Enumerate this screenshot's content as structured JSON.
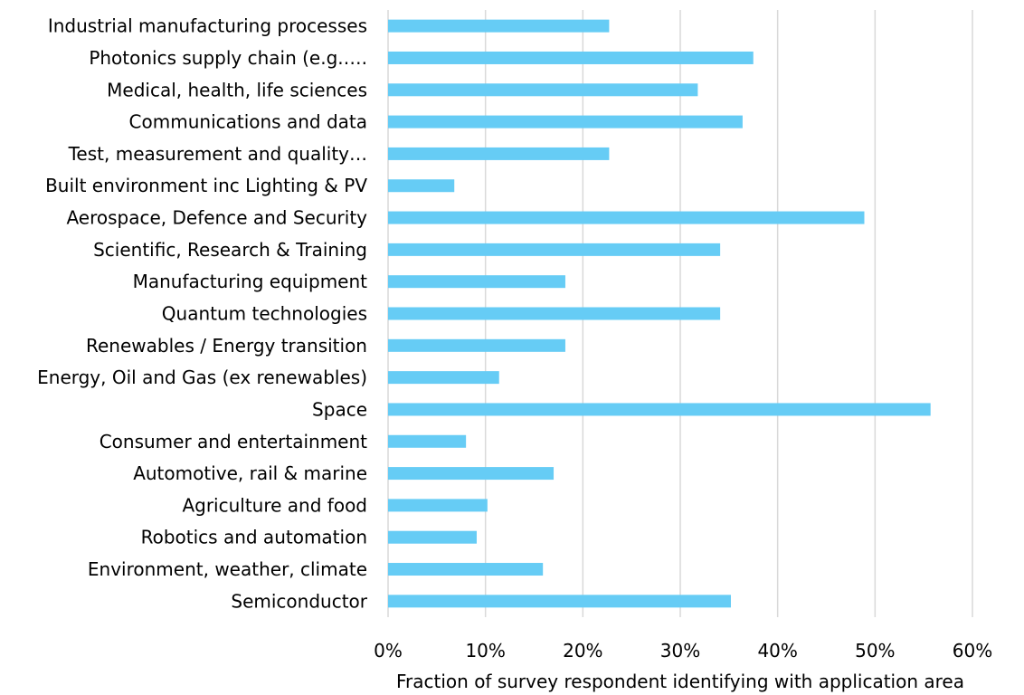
{
  "chart_data": {
    "type": "bar",
    "orientation": "horizontal",
    "categories": [
      "Industrial manufacturing processes",
      "Photonics supply chain (e.g.….",
      "Medical, health, life sciences",
      "Communications and data",
      "Test, measurement and quality…",
      "Built environment inc Lighting & PV",
      "Aerospace, Defence and Security",
      "Scientific, Research & Training",
      "Manufacturing equipment",
      "Quantum technologies",
      "Renewables / Energy transition",
      "Energy, Oil and Gas (ex renewables)",
      "Space",
      "Consumer and entertainment",
      "Automotive, rail & marine",
      "Agriculture and food",
      "Robotics and automation",
      "Environment, weather, climate",
      "Semiconductor"
    ],
    "values": [
      0.227,
      0.375,
      0.318,
      0.364,
      0.227,
      0.068,
      0.489,
      0.341,
      0.182,
      0.341,
      0.182,
      0.114,
      0.557,
      0.08,
      0.17,
      0.102,
      0.091,
      0.159,
      0.352
    ],
    "xlim": [
      0,
      0.6
    ],
    "x_ticks": [
      0,
      0.1,
      0.2,
      0.3,
      0.4,
      0.5,
      0.6
    ],
    "x_tick_labels": [
      "0%",
      "10%",
      "20%",
      "30%",
      "40%",
      "50%",
      "60%"
    ],
    "xlabel": "Fraction of survey respondent identifying with application area",
    "ylabel": "",
    "title": "",
    "grid": "vertical",
    "legend": "none",
    "bar_color": "#66CCF5",
    "grid_color": "#D9D9D9"
  }
}
